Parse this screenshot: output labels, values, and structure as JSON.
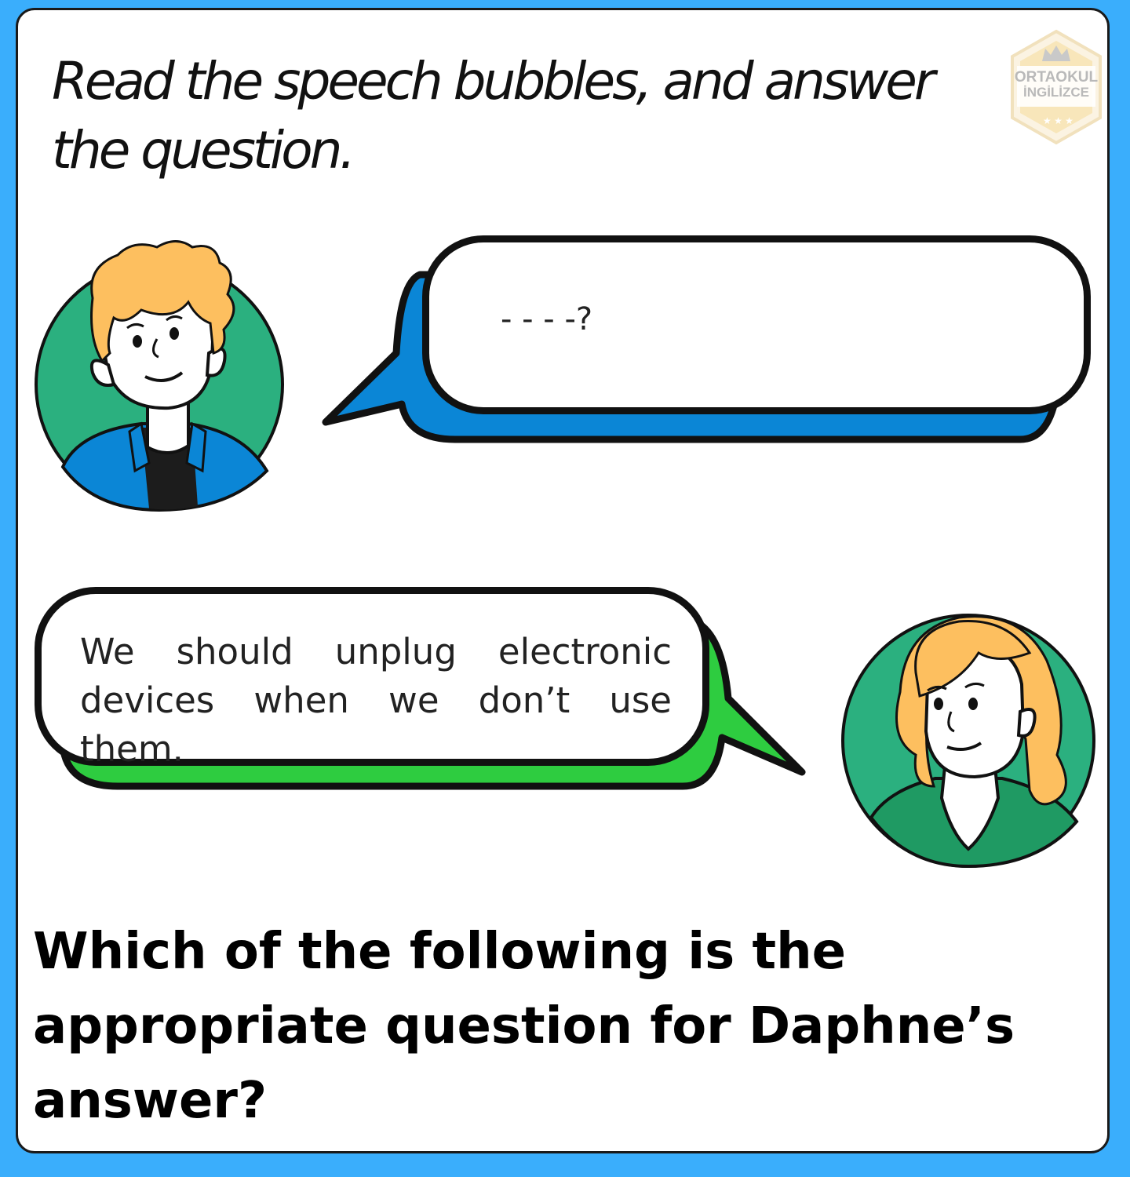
{
  "instruction": "Read the speech bubbles, and answer the question.",
  "logo": {
    "line1": "ORTAOKUL",
    "line2": "İNGİLİZCE",
    "icon": "crown-icon"
  },
  "bubble_top": {
    "text": "- - - -?",
    "back_color": "#0b86d6"
  },
  "bubble_bottom": {
    "text": "We should unplug electronic devices when we don’t use them.",
    "back_color": "#2ecc40"
  },
  "question": "Which of the following is the appropriate question for Daphne’s answer?",
  "colors": {
    "frame": "#3aaefc",
    "avatar_bg": "#2bb07f",
    "hair": "#fdbf5f"
  }
}
